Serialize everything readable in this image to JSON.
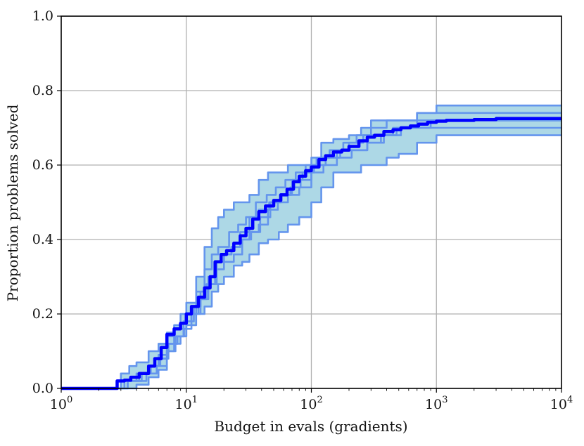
{
  "chart_data": {
    "type": "line",
    "title": "",
    "xlabel": "Budget in evals (gradients)",
    "ylabel": "Proportion problems solved",
    "xscale": "log",
    "xlim": [
      1,
      10000
    ],
    "ylim": [
      0,
      1
    ],
    "grid": true,
    "x_ticks": [
      {
        "base": "10",
        "exp": "0",
        "value": 1
      },
      {
        "base": "10",
        "exp": "1",
        "value": 10
      },
      {
        "base": "10",
        "exp": "2",
        "value": 100
      },
      {
        "base": "10",
        "exp": "3",
        "value": 1000
      },
      {
        "base": "10",
        "exp": "4",
        "value": 10000
      }
    ],
    "y_ticks": [
      "0.0",
      "0.2",
      "0.4",
      "0.6",
      "0.8",
      "1.0"
    ],
    "colors": {
      "mean": "#0000ff",
      "runs": "#6495ed",
      "band_fill": "#add8e6",
      "grid": "#b0b0b0"
    },
    "series": [
      {
        "role": "mean",
        "x": [
          1,
          2.4,
          2.8,
          3.2,
          3.6,
          4.2,
          5,
          5.6,
          6.3,
          7,
          8,
          9,
          10,
          11,
          12.5,
          14,
          15.5,
          17,
          19,
          21,
          24,
          27,
          30,
          34,
          38,
          43,
          50,
          57,
          64,
          72,
          80,
          90,
          100,
          115,
          130,
          150,
          175,
          200,
          240,
          280,
          320,
          380,
          450,
          520,
          620,
          720,
          850,
          1000,
          1200,
          1500,
          2000,
          3000,
          5000,
          10000
        ],
        "y": [
          0,
          0,
          0.02,
          0.022,
          0.03,
          0.04,
          0.06,
          0.08,
          0.11,
          0.145,
          0.16,
          0.175,
          0.2,
          0.22,
          0.245,
          0.27,
          0.3,
          0.34,
          0.36,
          0.37,
          0.39,
          0.41,
          0.43,
          0.455,
          0.475,
          0.49,
          0.505,
          0.52,
          0.535,
          0.555,
          0.57,
          0.585,
          0.595,
          0.615,
          0.625,
          0.635,
          0.64,
          0.65,
          0.665,
          0.675,
          0.68,
          0.69,
          0.695,
          0.7,
          0.705,
          0.71,
          0.715,
          0.718,
          0.72,
          0.72,
          0.722,
          0.725,
          0.725,
          0.725
        ]
      }
    ],
    "band": {
      "x": [
        1,
        2.4,
        3,
        3.5,
        4,
        5,
        6,
        7,
        8,
        9,
        10,
        12,
        14,
        16,
        18,
        20,
        24,
        28,
        32,
        38,
        45,
        55,
        65,
        80,
        100,
        120,
        150,
        200,
        250,
        300,
        400,
        500,
        700,
        900,
        1000,
        1500,
        2000,
        5000,
        10000
      ],
      "upper": [
        0,
        0,
        0.04,
        0.06,
        0.07,
        0.1,
        0.12,
        0.15,
        0.17,
        0.2,
        0.23,
        0.3,
        0.38,
        0.43,
        0.46,
        0.48,
        0.5,
        0.5,
        0.52,
        0.56,
        0.58,
        0.58,
        0.6,
        0.6,
        0.62,
        0.66,
        0.67,
        0.68,
        0.7,
        0.72,
        0.72,
        0.72,
        0.74,
        0.74,
        0.76,
        0.76,
        0.76,
        0.76,
        0.76
      ],
      "lower": [
        0,
        0,
        0,
        0,
        0.01,
        0.03,
        0.05,
        0.1,
        0.12,
        0.14,
        0.17,
        0.2,
        0.22,
        0.26,
        0.28,
        0.3,
        0.33,
        0.34,
        0.36,
        0.39,
        0.4,
        0.42,
        0.44,
        0.46,
        0.5,
        0.54,
        0.58,
        0.58,
        0.6,
        0.6,
        0.62,
        0.63,
        0.66,
        0.66,
        0.68,
        0.68,
        0.68,
        0.68,
        0.68
      ]
    },
    "runs": [
      {
        "x": [
          1,
          2.4,
          3,
          3.5,
          4,
          5,
          6,
          7,
          8,
          9,
          10,
          12,
          14,
          16,
          18,
          20,
          24,
          28,
          32,
          38,
          45,
          55,
          65,
          80,
          100,
          120,
          150,
          200,
          250,
          300,
          400,
          500,
          700,
          900,
          1000,
          1500,
          2000,
          5000,
          10000
        ],
        "y": [
          0,
          0,
          0.04,
          0.06,
          0.07,
          0.1,
          0.12,
          0.15,
          0.17,
          0.2,
          0.23,
          0.3,
          0.38,
          0.43,
          0.46,
          0.48,
          0.5,
          0.5,
          0.52,
          0.56,
          0.58,
          0.58,
          0.6,
          0.6,
          0.62,
          0.66,
          0.67,
          0.68,
          0.7,
          0.72,
          0.72,
          0.72,
          0.74,
          0.74,
          0.76,
          0.76,
          0.76,
          0.76,
          0.76
        ]
      },
      {
        "x": [
          1,
          2.4,
          3,
          3.5,
          4,
          5,
          6,
          7,
          8,
          9,
          10,
          12,
          14,
          16,
          18,
          20,
          24,
          28,
          32,
          38,
          45,
          55,
          65,
          80,
          100,
          120,
          150,
          200,
          250,
          300,
          400,
          500,
          700,
          900,
          1000,
          1500,
          2000,
          5000,
          10000
        ],
        "y": [
          0,
          0,
          0,
          0,
          0.01,
          0.03,
          0.05,
          0.1,
          0.12,
          0.14,
          0.17,
          0.2,
          0.22,
          0.26,
          0.28,
          0.3,
          0.33,
          0.34,
          0.36,
          0.39,
          0.4,
          0.42,
          0.44,
          0.46,
          0.5,
          0.54,
          0.58,
          0.58,
          0.6,
          0.6,
          0.62,
          0.63,
          0.66,
          0.66,
          0.68,
          0.68,
          0.68,
          0.68,
          0.68
        ]
      },
      {
        "x": [
          1,
          2.6,
          3.2,
          4,
          5,
          6,
          7,
          8,
          10,
          12,
          14,
          16,
          18,
          22,
          26,
          30,
          36,
          44,
          52,
          62,
          75,
          90,
          110,
          140,
          180,
          230,
          300,
          400,
          550,
          700,
          1000,
          1500,
          3000,
          10000
        ],
        "y": [
          0,
          0,
          0.02,
          0.04,
          0.06,
          0.09,
          0.14,
          0.16,
          0.2,
          0.26,
          0.32,
          0.36,
          0.38,
          0.42,
          0.44,
          0.46,
          0.5,
          0.52,
          0.54,
          0.56,
          0.58,
          0.6,
          0.62,
          0.64,
          0.66,
          0.68,
          0.7,
          0.72,
          0.72,
          0.74,
          0.74,
          0.74,
          0.74,
          0.74
        ]
      },
      {
        "x": [
          1,
          2.4,
          3,
          3.6,
          4.4,
          5.2,
          6.2,
          7.2,
          8.5,
          10,
          11.5,
          13,
          15,
          17,
          20,
          23,
          27,
          32,
          38,
          46,
          56,
          68,
          82,
          100,
          130,
          170,
          220,
          280,
          360,
          480,
          650,
          900,
          1300,
          2000,
          10000
        ],
        "y": [
          0,
          0,
          0.02,
          0.02,
          0.04,
          0.06,
          0.08,
          0.12,
          0.14,
          0.18,
          0.22,
          0.26,
          0.3,
          0.34,
          0.36,
          0.38,
          0.42,
          0.46,
          0.48,
          0.5,
          0.52,
          0.54,
          0.56,
          0.6,
          0.62,
          0.64,
          0.64,
          0.66,
          0.68,
          0.7,
          0.7,
          0.72,
          0.72,
          0.72,
          0.72
        ]
      },
      {
        "x": [
          1,
          2.8,
          3.4,
          4,
          4.8,
          5.8,
          7,
          8.2,
          9.6,
          11,
          12.5,
          14.5,
          17,
          20,
          24,
          28,
          33,
          39,
          47,
          57,
          70,
          85,
          105,
          130,
          160,
          200,
          260,
          340,
          450,
          600,
          800,
          1100,
          1600,
          3000,
          10000
        ],
        "y": [
          0,
          0,
          0.02,
          0.02,
          0.04,
          0.06,
          0.1,
          0.14,
          0.16,
          0.2,
          0.24,
          0.28,
          0.32,
          0.34,
          0.36,
          0.4,
          0.42,
          0.46,
          0.5,
          0.52,
          0.56,
          0.58,
          0.6,
          0.62,
          0.64,
          0.66,
          0.68,
          0.68,
          0.7,
          0.7,
          0.7,
          0.7,
          0.7,
          0.7,
          0.7
        ]
      },
      {
        "x": [
          1,
          2.6,
          3.4,
          4.2,
          5,
          6,
          7,
          8,
          9.5,
          11,
          13,
          15,
          17.5,
          20,
          23,
          27,
          32,
          38,
          45,
          54,
          65,
          80,
          100,
          125,
          160,
          210,
          280,
          380,
          520,
          700,
          1000,
          1500,
          2500,
          10000
        ],
        "y": [
          0,
          0,
          0.02,
          0.04,
          0.06,
          0.08,
          0.12,
          0.14,
          0.18,
          0.2,
          0.24,
          0.28,
          0.34,
          0.36,
          0.38,
          0.4,
          0.42,
          0.44,
          0.48,
          0.5,
          0.52,
          0.54,
          0.58,
          0.6,
          0.62,
          0.64,
          0.66,
          0.68,
          0.7,
          0.72,
          0.72,
          0.72,
          0.72,
          0.72
        ]
      }
    ]
  }
}
